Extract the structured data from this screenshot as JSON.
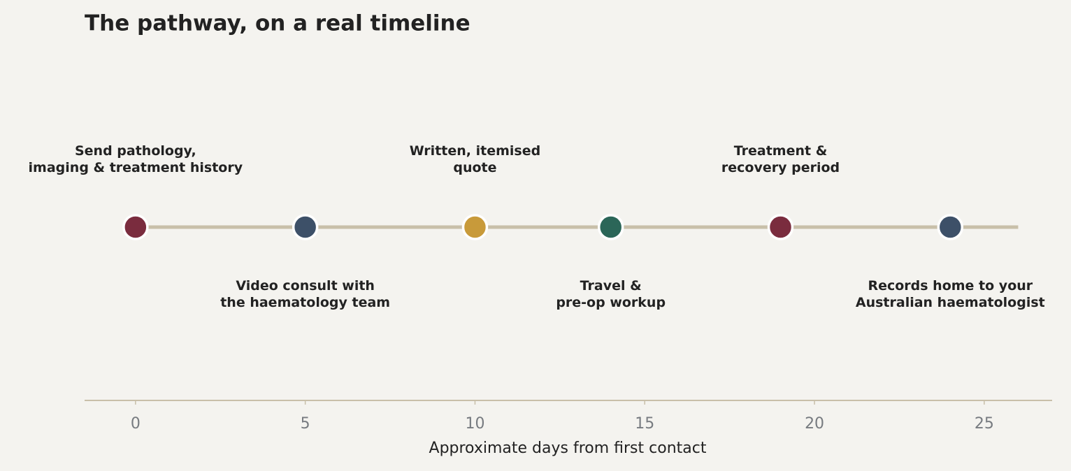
{
  "chart_data": {
    "type": "timeline",
    "title": "The pathway, on a real timeline",
    "xlabel": "Approximate days from first contact",
    "xlim": [
      -1.5,
      27
    ],
    "xticks": [
      0,
      5,
      10,
      15,
      20,
      25
    ],
    "x": [
      0,
      5,
      10,
      14,
      19,
      24
    ],
    "labels": [
      "Send pathology,\nimaging & treatment history",
      "Video consult with\nthe haematology team",
      "Written, itemised\nquote",
      "Travel &\npre-op workup",
      "Treatment &\nrecovery period",
      "Records home to your\nAustralian haematologist"
    ],
    "colors": [
      "#7a2c3e",
      "#3d5068",
      "#c89a3a",
      "#2b6658",
      "#7a2c3e",
      "#3d5068"
    ],
    "track": {
      "x": [
        0,
        26
      ],
      "color": "#c8bfa9"
    }
  }
}
